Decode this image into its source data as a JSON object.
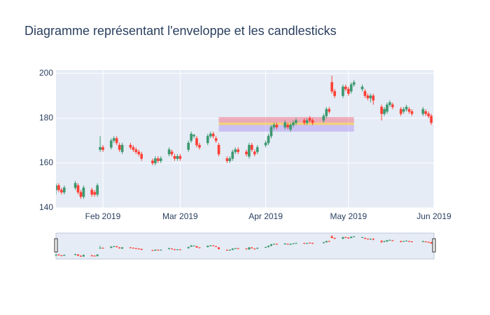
{
  "chart_data": {
    "type": "candlestick",
    "title": "Diagramme représentant l'enveloppe et les candlesticks",
    "increasing_color": "#3D9970",
    "decreasing_color": "#FF4136",
    "xlim": [
      "2019-01-15",
      "2019-06-01"
    ],
    "xticks": [
      {
        "value": "2019-02-01",
        "label": "Feb 2019"
      },
      {
        "value": "2019-03-01",
        "label": "Mar 2019"
      },
      {
        "value": "2019-04-01",
        "label": "Apr 2019"
      },
      {
        "value": "2019-05-01",
        "label": "May 2019"
      },
      {
        "value": "2019-06-01",
        "label": "Jun 2019"
      }
    ],
    "ylim": [
      140,
      201.5
    ],
    "yticks": [
      140,
      160,
      180,
      200
    ],
    "grid": true,
    "rangeslider": true,
    "shapes": [
      {
        "x0": "2019-03-15",
        "x1": "2019-05-03",
        "y0": 178,
        "y1": 180.5,
        "color": "rgba(240,90,110,0.45)"
      },
      {
        "x0": "2019-03-15",
        "x1": "2019-05-03",
        "y0": 177,
        "y1": 178,
        "color": "rgba(250,200,60,0.7)"
      },
      {
        "x0": "2019-03-15",
        "x1": "2019-05-03",
        "y0": 174,
        "y1": 177,
        "color": "rgba(170,140,240,0.45)"
      }
    ],
    "candles": [
      [
        "2019-01-15",
        148,
        151,
        146,
        150
      ],
      [
        "2019-01-16",
        150,
        151,
        147,
        148
      ],
      [
        "2019-01-17",
        148,
        149,
        146,
        147
      ],
      [
        "2019-01-18",
        147,
        150,
        146,
        149
      ],
      [
        "2019-01-22",
        149,
        152,
        148,
        151
      ],
      [
        "2019-01-23",
        150,
        151,
        146,
        147
      ],
      [
        "2019-01-24",
        147,
        148,
        144,
        145
      ],
      [
        "2019-01-25",
        145,
        150,
        144,
        149
      ],
      [
        "2019-01-28",
        148,
        149,
        145,
        146
      ],
      [
        "2019-01-29",
        147,
        148,
        145,
        146
      ],
      [
        "2019-01-30",
        146,
        151,
        145,
        150
      ],
      [
        "2019-01-31",
        166,
        172,
        165,
        167
      ],
      [
        "2019-02-01",
        167,
        168,
        165,
        166
      ],
      [
        "2019-02-04",
        167,
        171,
        166,
        170
      ],
      [
        "2019-02-05",
        170,
        172,
        169,
        171
      ],
      [
        "2019-02-06",
        171,
        172,
        168,
        169
      ],
      [
        "2019-02-07",
        168,
        169,
        165,
        166
      ],
      [
        "2019-02-08",
        165,
        169,
        164,
        168
      ],
      [
        "2019-02-11",
        168,
        169,
        166,
        167
      ],
      [
        "2019-02-12",
        167,
        168,
        165,
        166
      ],
      [
        "2019-02-13",
        166,
        167,
        164,
        165
      ],
      [
        "2019-02-14",
        165,
        166,
        163,
        164
      ],
      [
        "2019-02-15",
        164,
        165,
        161,
        162
      ],
      [
        "2019-02-19",
        161,
        162,
        159,
        160
      ],
      [
        "2019-02-20",
        160,
        163,
        159,
        162
      ],
      [
        "2019-02-21",
        162,
        163,
        160,
        161
      ],
      [
        "2019-02-22",
        161,
        163,
        160,
        162
      ],
      [
        "2019-02-25",
        164,
        167,
        163,
        166
      ],
      [
        "2019-02-26",
        165,
        166,
        163,
        164
      ],
      [
        "2019-02-27",
        163,
        164,
        161,
        162
      ],
      [
        "2019-02-28",
        162,
        164,
        161,
        163
      ],
      [
        "2019-03-01",
        163,
        164,
        161,
        162
      ],
      [
        "2019-03-04",
        166,
        170,
        165,
        169
      ],
      [
        "2019-03-05",
        170,
        174,
        169,
        173
      ],
      [
        "2019-03-06",
        172,
        173,
        171,
        172.5
      ],
      [
        "2019-03-07",
        171,
        172,
        167,
        168
      ],
      [
        "2019-03-08",
        168,
        169,
        166,
        167
      ],
      [
        "2019-03-11",
        169,
        173,
        168,
        172
      ],
      [
        "2019-03-12",
        172,
        174,
        171,
        173
      ],
      [
        "2019-03-13",
        173,
        174,
        171,
        172
      ],
      [
        "2019-03-14",
        171,
        172,
        169,
        170
      ],
      [
        "2019-03-15",
        168,
        169,
        163,
        164
      ],
      [
        "2019-03-18",
        162,
        163,
        160,
        161
      ],
      [
        "2019-03-19",
        161,
        163,
        160,
        162
      ],
      [
        "2019-03-20",
        162,
        166,
        161,
        165
      ],
      [
        "2019-03-21",
        165,
        167,
        164,
        166
      ],
      [
        "2019-03-22",
        166,
        167,
        164,
        165
      ],
      [
        "2019-03-25",
        165,
        166,
        163,
        164
      ],
      [
        "2019-03-26",
        163,
        169,
        162,
        168
      ],
      [
        "2019-03-27",
        168,
        169,
        165,
        166
      ],
      [
        "2019-03-28",
        165,
        166,
        163,
        164
      ],
      [
        "2019-03-29",
        165,
        168,
        164,
        167
      ],
      [
        "2019-04-01",
        168,
        170,
        167,
        169
      ],
      [
        "2019-04-02",
        169,
        173,
        168,
        172
      ],
      [
        "2019-04-03",
        172,
        177,
        171,
        176
      ],
      [
        "2019-04-04",
        176,
        178,
        175,
        177
      ],
      [
        "2019-04-05",
        177,
        178,
        175,
        176
      ],
      [
        "2019-04-08",
        176,
        179,
        175,
        178
      ],
      [
        "2019-04-09",
        177,
        178,
        175,
        176
      ],
      [
        "2019-04-10",
        175,
        178,
        174,
        177
      ],
      [
        "2019-04-11",
        177,
        179,
        176,
        178
      ],
      [
        "2019-04-12",
        178,
        180,
        177,
        179
      ],
      [
        "2019-04-15",
        179,
        180,
        177,
        178
      ],
      [
        "2019-04-16",
        178,
        180,
        177,
        179
      ],
      [
        "2019-04-17",
        180,
        181,
        178,
        179
      ],
      [
        "2019-04-18",
        179,
        180,
        177,
        178
      ],
      [
        "2019-04-22",
        179,
        182,
        178,
        181
      ],
      [
        "2019-04-23",
        181,
        185,
        180,
        184
      ],
      [
        "2019-04-24",
        184,
        185,
        182,
        183
      ],
      [
        "2019-04-25",
        196,
        199,
        191,
        192
      ],
      [
        "2019-04-26",
        192,
        193,
        189,
        190
      ],
      [
        "2019-04-29",
        190,
        195,
        189,
        194
      ],
      [
        "2019-04-30",
        194,
        195,
        192,
        193
      ],
      [
        "2019-05-01",
        193,
        194,
        190,
        191
      ],
      [
        "2019-05-02",
        192,
        196,
        191,
        195
      ],
      [
        "2019-05-03",
        195,
        197,
        194,
        196
      ],
      [
        "2019-05-06",
        193,
        195,
        192,
        194
      ],
      [
        "2019-05-07",
        192,
        193,
        189,
        190
      ],
      [
        "2019-05-08",
        190,
        191,
        188,
        189
      ],
      [
        "2019-05-09",
        189,
        191,
        187,
        190
      ],
      [
        "2019-05-10",
        190,
        191,
        186,
        188
      ],
      [
        "2019-05-13",
        185,
        186,
        179,
        182
      ],
      [
        "2019-05-14",
        182,
        185,
        181,
        184
      ],
      [
        "2019-05-15",
        183,
        187,
        182,
        186
      ],
      [
        "2019-05-16",
        186,
        188,
        185,
        187
      ],
      [
        "2019-05-17",
        186,
        187,
        184,
        185
      ],
      [
        "2019-05-20",
        184,
        185,
        181,
        182
      ],
      [
        "2019-05-21",
        183,
        185,
        182,
        184
      ],
      [
        "2019-05-22",
        184,
        186,
        183,
        185
      ],
      [
        "2019-05-23",
        184,
        185,
        182,
        183
      ],
      [
        "2019-05-24",
        183,
        184,
        181,
        182
      ],
      [
        "2019-05-28",
        182,
        185,
        181,
        184
      ],
      [
        "2019-05-29",
        183,
        184,
        181,
        182
      ],
      [
        "2019-05-30",
        182,
        183,
        180,
        181
      ],
      [
        "2019-05-31",
        181,
        182,
        177,
        178
      ]
    ]
  }
}
